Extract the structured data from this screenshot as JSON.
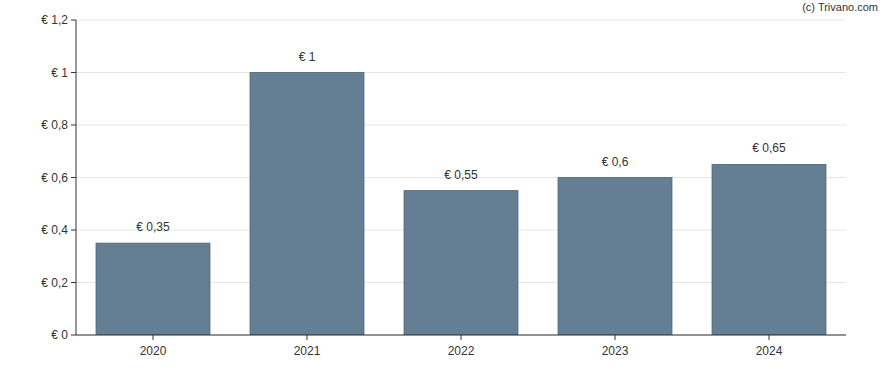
{
  "chart_data": {
    "type": "bar",
    "categories": [
      "2020",
      "2021",
      "2022",
      "2023",
      "2024"
    ],
    "values": [
      0.35,
      1,
      0.55,
      0.6,
      0.65
    ],
    "value_labels": [
      "€ 0,35",
      "€ 1",
      "€ 0,55",
      "€ 0,6",
      "€ 0,65"
    ],
    "color": "#647f93",
    "ylim": [
      0,
      1.2
    ],
    "yticks": [
      {
        "value": 0,
        "label": "€ 0"
      },
      {
        "value": 0.2,
        "label": "€ 0,2"
      },
      {
        "value": 0.4,
        "label": "€ 0,4"
      },
      {
        "value": 0.6,
        "label": "€ 0,6"
      },
      {
        "value": 0.8,
        "label": "€ 0,8"
      },
      {
        "value": 1,
        "label": "€ 1"
      },
      {
        "value": 1.2,
        "label": "€ 1,2"
      }
    ],
    "grid": true,
    "data_labels": true,
    "annotations": [
      "(c) Trivano.com"
    ]
  }
}
